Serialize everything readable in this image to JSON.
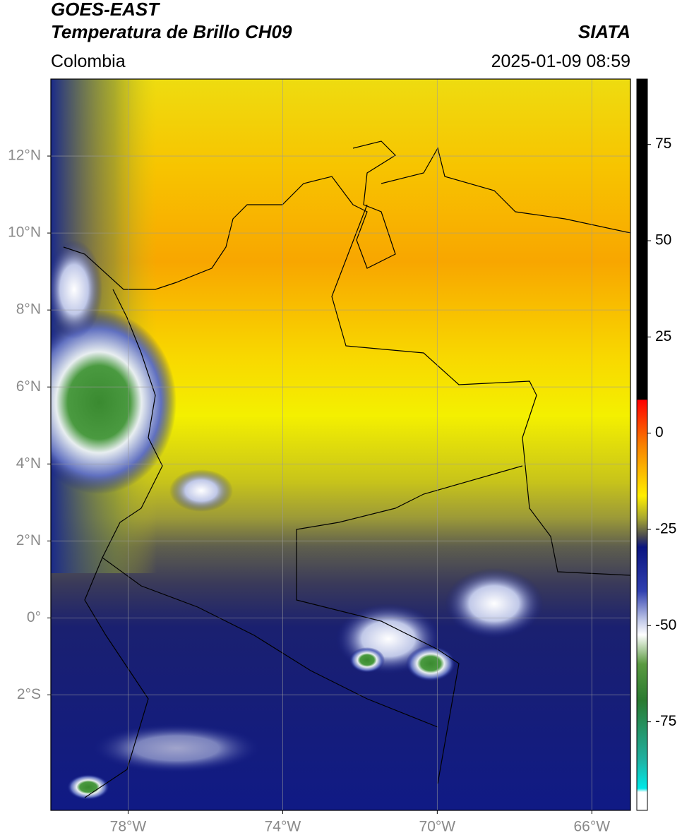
{
  "header": {
    "satellite": "GOES-EAST",
    "product": "Temperatura de Brillo CH09",
    "source": "SIATA",
    "region": "Colombia",
    "datetime": "2025-01-09 08:59"
  },
  "map": {
    "xlim": [
      -80,
      -65
    ],
    "ylim": [
      -5,
      14
    ],
    "xticks": [
      {
        "value": -78,
        "label": "78°W"
      },
      {
        "value": -74,
        "label": "74°W"
      },
      {
        "value": -70,
        "label": "70°W"
      },
      {
        "value": -66,
        "label": "66°W"
      }
    ],
    "yticks": [
      {
        "value": 12,
        "label": "12°N"
      },
      {
        "value": 10,
        "label": "10°N"
      },
      {
        "value": 8,
        "label": "8°N"
      },
      {
        "value": 6,
        "label": "6°N"
      },
      {
        "value": 4,
        "label": "4°N"
      },
      {
        "value": 2,
        "label": "2°N"
      },
      {
        "value": 0,
        "label": "0°"
      },
      {
        "value": -2,
        "label": "2°S"
      }
    ],
    "grid": true
  },
  "colorbar": {
    "lim": [
      -98,
      92
    ],
    "ticks": [
      75,
      50,
      25,
      0,
      -25,
      -50,
      -75
    ]
  }
}
